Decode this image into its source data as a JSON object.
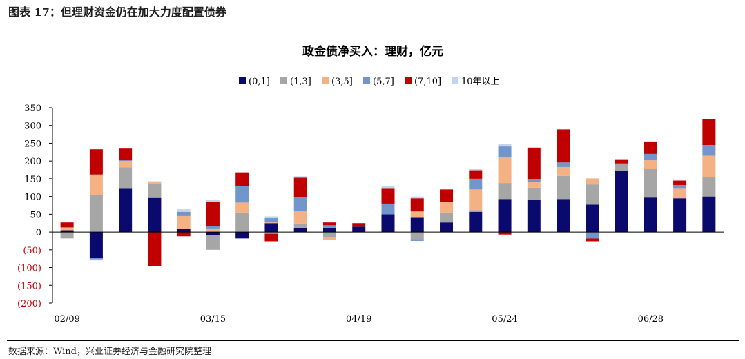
{
  "figure_title": "图表 17：但理财资金仍在加大力度配置债券",
  "source_note": "数据来源：Wind，兴业证券经济与金融研究院整理",
  "chart_data": {
    "type": "bar",
    "stacked": true,
    "title": "政金债净买入：理财，亿元",
    "ylim": [
      -200,
      350
    ],
    "yticks": [
      350,
      300,
      250,
      200,
      150,
      100,
      50,
      0,
      -50,
      -100,
      -150,
      -200
    ],
    "ytick_labels": [
      "350",
      "300",
      "250",
      "200",
      "150",
      "100",
      "50",
      "0",
      "(50)",
      "(100)",
      "(150)",
      "(200)"
    ],
    "negative_label_color": "#c00000",
    "x_tick_labels": [
      {
        "index": 0,
        "label": "02/09"
      },
      {
        "index": 5,
        "label": "03/15"
      },
      {
        "index": 10,
        "label": "04/19"
      },
      {
        "index": 15,
        "label": "05/24"
      },
      {
        "index": 20,
        "label": "06/28"
      }
    ],
    "legend_position": "top-center",
    "grid": false,
    "series": [
      {
        "name": "(0,1]",
        "color": "#0a0a6e",
        "values": [
          5,
          -72,
          122,
          96,
          8,
          -8,
          -18,
          25,
          12,
          12,
          15,
          50,
          40,
          27,
          57,
          93,
          90,
          93,
          77,
          173,
          97,
          95,
          100
        ]
      },
      {
        "name": "(1,3]",
        "color": "#a6a6a6",
        "values": [
          -18,
          105,
          60,
          40,
          0,
          -42,
          55,
          -5,
          12,
          -15,
          0,
          0,
          -20,
          28,
          5,
          45,
          35,
          65,
          57,
          20,
          80,
          0,
          55
        ]
      },
      {
        "name": "(3,5]",
        "color": "#f4b183",
        "values": [
          8,
          57,
          18,
          4,
          37,
          10,
          28,
          2,
          36,
          -8,
          0,
          0,
          18,
          30,
          58,
          73,
          17,
          25,
          17,
          0,
          25,
          27,
          60
        ]
      },
      {
        "name": "(5,7]",
        "color": "#7296cc",
        "values": [
          0,
          -5,
          2,
          0,
          12,
          7,
          47,
          12,
          38,
          7,
          0,
          30,
          -5,
          0,
          30,
          30,
          7,
          13,
          -18,
          0,
          18,
          10,
          30
        ]
      },
      {
        "name": "(7,10]",
        "color": "#c00000",
        "values": [
          14,
          71,
          33,
          -97,
          -12,
          68,
          38,
          -21,
          55,
          8,
          10,
          42,
          37,
          35,
          24,
          -7,
          87,
          93,
          -8,
          10,
          35,
          13,
          72
        ]
      },
      {
        "name": "10年以上",
        "color": "#c5d4ee",
        "values": [
          0,
          -3,
          0,
          3,
          7,
          6,
          0,
          5,
          4,
          0,
          0,
          7,
          5,
          0,
          3,
          7,
          3,
          0,
          0,
          0,
          0,
          0,
          0
        ]
      }
    ]
  }
}
